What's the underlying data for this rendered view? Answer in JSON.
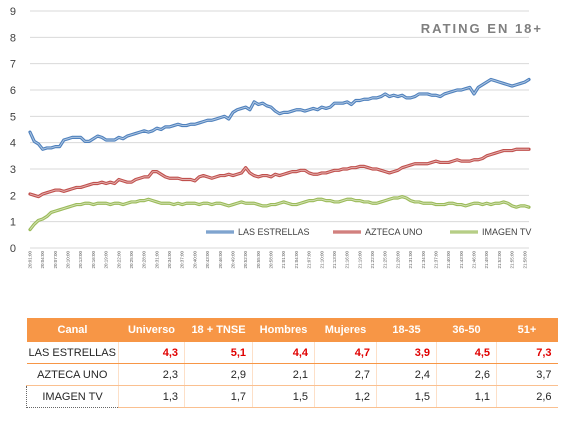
{
  "chart_data": {
    "type": "line",
    "title": "RATING EN 18+",
    "ylim": [
      0,
      9
    ],
    "y_ticks": [
      0,
      1,
      2,
      3,
      4,
      5,
      6,
      7,
      8,
      9
    ],
    "grid": "horizontal",
    "legend_position": "bottom",
    "x": [
      "20:01:00",
      "20:02:00",
      "20:03:00",
      "20:04:00",
      "20:05:00",
      "20:06:00",
      "20:07:00",
      "20:08:00",
      "20:09:00",
      "20:10:00",
      "20:11:00",
      "20:12:00",
      "20:13:00",
      "20:14:00",
      "20:15:00",
      "20:16:00",
      "20:17:00",
      "20:18:00",
      "20:19:00",
      "20:20:00",
      "20:21:00",
      "20:22:00",
      "20:23:00",
      "20:24:00",
      "20:25:00",
      "20:26:00",
      "20:27:00",
      "20:28:00",
      "20:29:00",
      "20:30:00",
      "20:31:00",
      "20:32:00",
      "20:33:00",
      "20:34:00",
      "20:35:00",
      "20:36:00",
      "20:37:00",
      "20:38:00",
      "20:39:00",
      "20:40:00",
      "20:41:00",
      "20:42:00",
      "20:43:00",
      "20:44:00",
      "20:45:00",
      "20:46:00",
      "20:47:00",
      "20:48:00",
      "20:49:00",
      "20:50:00",
      "20:51:00",
      "20:52:00",
      "20:53:00",
      "20:54:00",
      "20:55:00",
      "20:56:00",
      "20:57:00",
      "20:58:00",
      "20:59:00",
      "21:00:00",
      "21:01:00",
      "21:02:00",
      "21:03:00",
      "21:04:00",
      "21:05:00",
      "21:06:00",
      "21:07:00",
      "21:08:00",
      "21:09:00",
      "21:10:00",
      "21:11:00",
      "21:12:00",
      "21:13:00",
      "21:14:00",
      "21:15:00",
      "21:16:00",
      "21:17:00",
      "21:18:00",
      "21:19:00",
      "21:20:00",
      "21:21:00",
      "21:22:00",
      "21:23:00",
      "21:24:00",
      "21:25:00",
      "21:26:00",
      "21:27:00",
      "21:28:00",
      "21:29:00",
      "21:30:00",
      "21:31:00",
      "21:32:00",
      "21:33:00",
      "21:34:00",
      "21:35:00",
      "21:36:00",
      "21:37:00",
      "21:38:00",
      "21:39:00",
      "21:40:00",
      "21:41:00",
      "21:42:00",
      "21:43:00",
      "21:44:00",
      "21:45:00",
      "21:46:00",
      "21:47:00",
      "21:48:00",
      "21:49:00",
      "21:50:00",
      "21:51:00",
      "21:52:00",
      "21:53:00",
      "21:54:00",
      "21:55:00",
      "21:56:00",
      "21:57:00",
      "21:58:00",
      "21:59:00"
    ],
    "x_tick_labels": [
      "20:01:00",
      "20:04:00",
      "20:07:00",
      "20:10:00",
      "20:13:00",
      "20:16:00",
      "20:19:00",
      "20:22:00",
      "20:25:00",
      "20:28:00",
      "20:31:00",
      "20:34:00",
      "20:37:00",
      "20:40:00",
      "20:43:00",
      "20:46:00",
      "20:49:00",
      "20:52:00",
      "20:55:00",
      "20:58:00",
      "21:01:00",
      "21:04:00",
      "21:07:00",
      "21:10:00",
      "21:13:00",
      "21:16:00",
      "21:19:00",
      "21:22:00",
      "21:25:00",
      "21:28:00",
      "21:31:00",
      "21:34:00",
      "21:37:00",
      "21:40:00",
      "21:43:00",
      "21:46:00",
      "21:49:00",
      "21:52:00",
      "21:55:00",
      "21:58:00"
    ],
    "series": [
      {
        "name": "LAS ESTRELLAS",
        "color": "#4f81bd",
        "values": [
          4.4,
          4.05,
          3.95,
          3.75,
          3.8,
          3.8,
          3.85,
          3.85,
          4.1,
          4.15,
          4.2,
          4.2,
          4.2,
          4.05,
          4.05,
          4.15,
          4.25,
          4.2,
          4.1,
          4.1,
          4.1,
          4.2,
          4.15,
          4.25,
          4.3,
          4.35,
          4.4,
          4.45,
          4.4,
          4.45,
          4.55,
          4.5,
          4.6,
          4.6,
          4.65,
          4.7,
          4.65,
          4.65,
          4.7,
          4.7,
          4.75,
          4.8,
          4.85,
          4.85,
          4.9,
          4.95,
          5.0,
          4.9,
          5.15,
          5.25,
          5.3,
          5.35,
          5.25,
          5.55,
          5.45,
          5.5,
          5.4,
          5.35,
          5.2,
          5.1,
          5.15,
          5.15,
          5.2,
          5.25,
          5.25,
          5.2,
          5.25,
          5.3,
          5.25,
          5.35,
          5.3,
          5.35,
          5.5,
          5.5,
          5.5,
          5.55,
          5.45,
          5.6,
          5.6,
          5.65,
          5.65,
          5.7,
          5.7,
          5.75,
          5.85,
          5.75,
          5.8,
          5.75,
          5.8,
          5.7,
          5.7,
          5.75,
          5.85,
          5.85,
          5.85,
          5.8,
          5.8,
          5.75,
          5.85,
          5.9,
          5.95,
          6.0,
          6.0,
          6.05,
          6.1,
          5.85,
          6.1,
          6.2,
          6.3,
          6.4,
          6.35,
          6.3,
          6.25,
          6.2,
          6.15,
          6.2,
          6.25,
          6.3,
          6.4
        ]
      },
      {
        "name": "AZTECA UNO",
        "color": "#c0504d",
        "values": [
          2.05,
          2.0,
          1.95,
          2.05,
          2.1,
          2.15,
          2.2,
          2.2,
          2.15,
          2.2,
          2.25,
          2.3,
          2.3,
          2.35,
          2.4,
          2.45,
          2.45,
          2.5,
          2.45,
          2.5,
          2.45,
          2.6,
          2.55,
          2.5,
          2.5,
          2.6,
          2.65,
          2.7,
          2.7,
          2.9,
          2.9,
          2.8,
          2.7,
          2.65,
          2.65,
          2.65,
          2.6,
          2.6,
          2.6,
          2.55,
          2.7,
          2.75,
          2.7,
          2.65,
          2.7,
          2.75,
          2.75,
          2.8,
          2.75,
          2.8,
          2.85,
          3.05,
          2.85,
          2.75,
          2.7,
          2.75,
          2.75,
          2.7,
          2.8,
          2.75,
          2.8,
          2.85,
          2.9,
          2.9,
          2.95,
          2.95,
          2.85,
          2.8,
          2.8,
          2.85,
          2.85,
          2.9,
          2.95,
          2.95,
          3.0,
          3.0,
          3.05,
          3.05,
          3.1,
          3.1,
          3.05,
          3.0,
          3.0,
          2.95,
          2.9,
          2.85,
          2.9,
          2.95,
          3.05,
          3.1,
          3.15,
          3.2,
          3.2,
          3.2,
          3.2,
          3.25,
          3.3,
          3.25,
          3.25,
          3.25,
          3.3,
          3.35,
          3.3,
          3.3,
          3.3,
          3.35,
          3.35,
          3.4,
          3.5,
          3.55,
          3.6,
          3.65,
          3.7,
          3.7,
          3.7,
          3.75,
          3.75,
          3.75,
          3.75
        ]
      },
      {
        "name": "IMAGEN TV",
        "color": "#9bbb59",
        "values": [
          0.7,
          0.9,
          1.05,
          1.1,
          1.2,
          1.35,
          1.4,
          1.45,
          1.5,
          1.55,
          1.6,
          1.65,
          1.65,
          1.7,
          1.7,
          1.65,
          1.7,
          1.7,
          1.7,
          1.65,
          1.7,
          1.7,
          1.65,
          1.7,
          1.75,
          1.75,
          1.8,
          1.8,
          1.85,
          1.8,
          1.75,
          1.7,
          1.7,
          1.7,
          1.65,
          1.7,
          1.65,
          1.7,
          1.7,
          1.7,
          1.65,
          1.7,
          1.7,
          1.65,
          1.7,
          1.7,
          1.65,
          1.6,
          1.65,
          1.7,
          1.75,
          1.7,
          1.7,
          1.7,
          1.65,
          1.6,
          1.6,
          1.65,
          1.65,
          1.7,
          1.75,
          1.7,
          1.65,
          1.65,
          1.7,
          1.75,
          1.8,
          1.8,
          1.85,
          1.85,
          1.8,
          1.8,
          1.75,
          1.75,
          1.8,
          1.85,
          1.85,
          1.8,
          1.8,
          1.75,
          1.75,
          1.7,
          1.7,
          1.75,
          1.8,
          1.85,
          1.9,
          1.9,
          1.95,
          1.9,
          1.8,
          1.75,
          1.75,
          1.7,
          1.7,
          1.7,
          1.65,
          1.65,
          1.65,
          1.7,
          1.7,
          1.65,
          1.65,
          1.6,
          1.65,
          1.7,
          1.7,
          1.65,
          1.7,
          1.65,
          1.7,
          1.7,
          1.75,
          1.7,
          1.6,
          1.55,
          1.6,
          1.6,
          1.55
        ]
      }
    ]
  },
  "table": {
    "headers": [
      "Canal",
      "Universo",
      "18 + TNSE",
      "Hombres",
      "Mujeres",
      "18-35",
      "36-50",
      "51+"
    ],
    "rows": [
      {
        "canal": "LAS ESTRELLAS",
        "values": [
          "4,3",
          "5,1",
          "4,4",
          "4,7",
          "3,9",
          "4,5",
          "7,3"
        ]
      },
      {
        "canal": "AZTECA UNO",
        "values": [
          "2,3",
          "2,9",
          "2,1",
          "2,7",
          "2,4",
          "2,6",
          "3,7"
        ]
      },
      {
        "canal": "IMAGEN TV",
        "values": [
          "1,3",
          "1,7",
          "1,5",
          "1,2",
          "1,5",
          "1,1",
          "2,6"
        ]
      }
    ]
  }
}
